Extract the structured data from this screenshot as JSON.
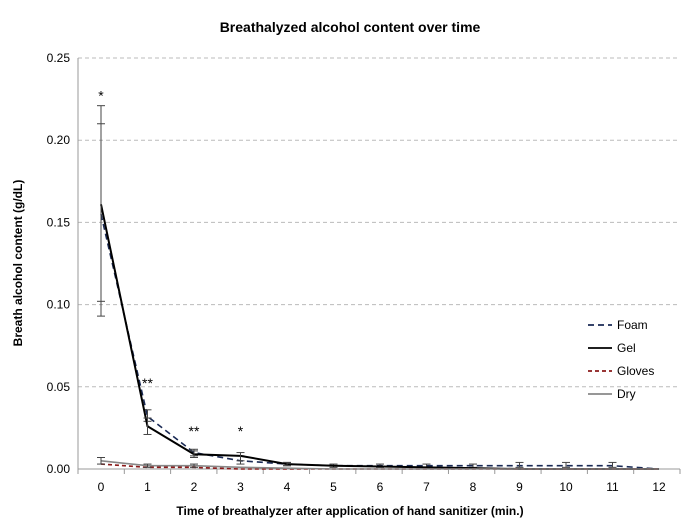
{
  "chart_data": {
    "type": "line",
    "title": "Breathalyzed alcohol content over time",
    "xlabel": "Time of breathalyzer after application of hand sanitizer (min.)",
    "ylabel": "Breath alcohol content (g/dL)",
    "x": [
      0,
      1,
      2,
      3,
      4,
      5,
      6,
      7,
      8,
      9,
      10,
      11,
      12
    ],
    "xlim": [
      0,
      12
    ],
    "ylim": [
      0,
      0.25
    ],
    "yticks": [
      "0.00",
      "0.05",
      "0.10",
      "0.15",
      "0.20",
      "0.25"
    ],
    "grid": "horizontal dashed",
    "legend_position": "right",
    "series": [
      {
        "name": "Foam",
        "color": "#1a2a55",
        "dash": "6,4",
        "values": [
          0.155,
          0.032,
          0.01,
          0.005,
          0.003,
          0.002,
          0.002,
          0.002,
          0.002,
          0.002,
          0.002,
          0.002,
          0.0
        ],
        "err_low": [
          0.093,
          0.029,
          0.008,
          0.003,
          0.002,
          0.001,
          0.001,
          0.001,
          0.001,
          0.001,
          0.001,
          0.001,
          null
        ],
        "err_high": [
          0.21,
          0.036,
          0.012,
          0.008,
          0.004,
          0.003,
          0.003,
          0.003,
          0.003,
          0.004,
          0.004,
          0.004,
          null
        ]
      },
      {
        "name": "Gel",
        "color": "#000000",
        "dash": "",
        "values": [
          0.161,
          0.026,
          0.009,
          0.008,
          0.003,
          0.002,
          0.0015,
          0.001,
          0.0005,
          0,
          0,
          0,
          0
        ],
        "err_low": [
          0.102,
          0.021,
          0.007,
          0.005,
          0.002,
          null,
          null,
          null,
          null,
          null,
          null,
          null,
          null
        ],
        "err_high": [
          0.221,
          0.031,
          0.011,
          0.01,
          0.004,
          null,
          null,
          null,
          null,
          null,
          null,
          null,
          null
        ]
      },
      {
        "name": "Gloves",
        "color": "#8b1a1a",
        "dash": "4,3",
        "values": [
          0.003,
          0.001,
          0.001,
          0,
          0,
          0,
          0,
          0,
          0,
          0,
          0,
          0,
          0
        ],
        "err_low": [],
        "err_high": []
      },
      {
        "name": "Dry",
        "color": "#888888",
        "dash": "",
        "values": [
          0.005,
          0.002,
          0.002,
          0.001,
          0.0005,
          0,
          0,
          0,
          0,
          0,
          0,
          0,
          0
        ],
        "err_low": [
          0.003,
          0.001,
          0.001,
          null
        ],
        "err_high": [
          0.007,
          0.003,
          0.003,
          null
        ]
      }
    ],
    "annotations": [
      {
        "x": 0,
        "y": 0.229,
        "text": "*"
      },
      {
        "x": 1,
        "y": 0.054,
        "text": "**"
      },
      {
        "x": 2,
        "y": 0.025,
        "text": "**"
      },
      {
        "x": 3,
        "y": 0.025,
        "text": "*"
      }
    ]
  }
}
